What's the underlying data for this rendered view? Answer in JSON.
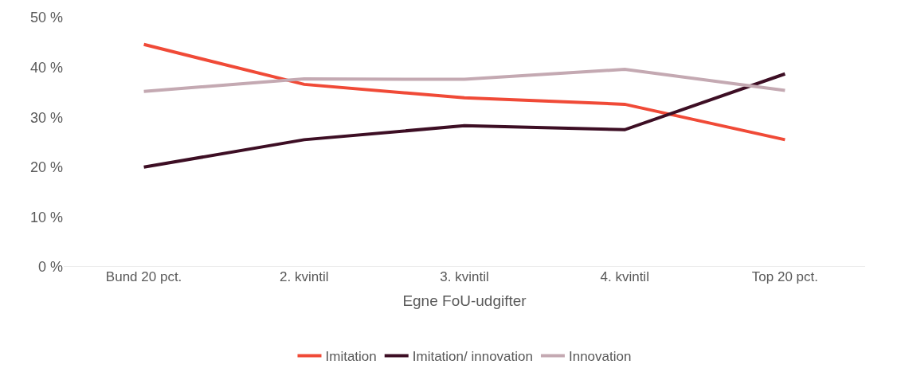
{
  "chart_data": {
    "type": "line",
    "xlabel": "Egne FoU-udgifter",
    "categories": [
      "Bund 20 pct.",
      "2. kvintil",
      "3. kvintil",
      "4. kvintil",
      "Top 20 pct."
    ],
    "series": [
      {
        "name": "Imitation",
        "color": "#f04a37",
        "values": [
          44.6,
          36.6,
          33.9,
          32.6,
          25.5
        ]
      },
      {
        "name": "Imitation/ innovation",
        "color": "#3d0e24",
        "values": [
          20.0,
          25.5,
          28.3,
          27.5,
          38.7
        ]
      },
      {
        "name": "Innovation",
        "color": "#c4a9b2",
        "values": [
          35.2,
          37.7,
          37.6,
          39.6,
          35.4
        ]
      }
    ],
    "ylim": [
      0,
      50
    ],
    "yticks": [
      {
        "value": 0,
        "label": "0 %"
      },
      {
        "value": 10,
        "label": "10 %"
      },
      {
        "value": 20,
        "label": "20 %"
      },
      {
        "value": 30,
        "label": "30 %"
      },
      {
        "value": 40,
        "label": "40 %"
      },
      {
        "value": 50,
        "label": "50 %"
      }
    ],
    "grid": false,
    "legend": "bottom",
    "marker": "none",
    "line_style": "solid"
  }
}
